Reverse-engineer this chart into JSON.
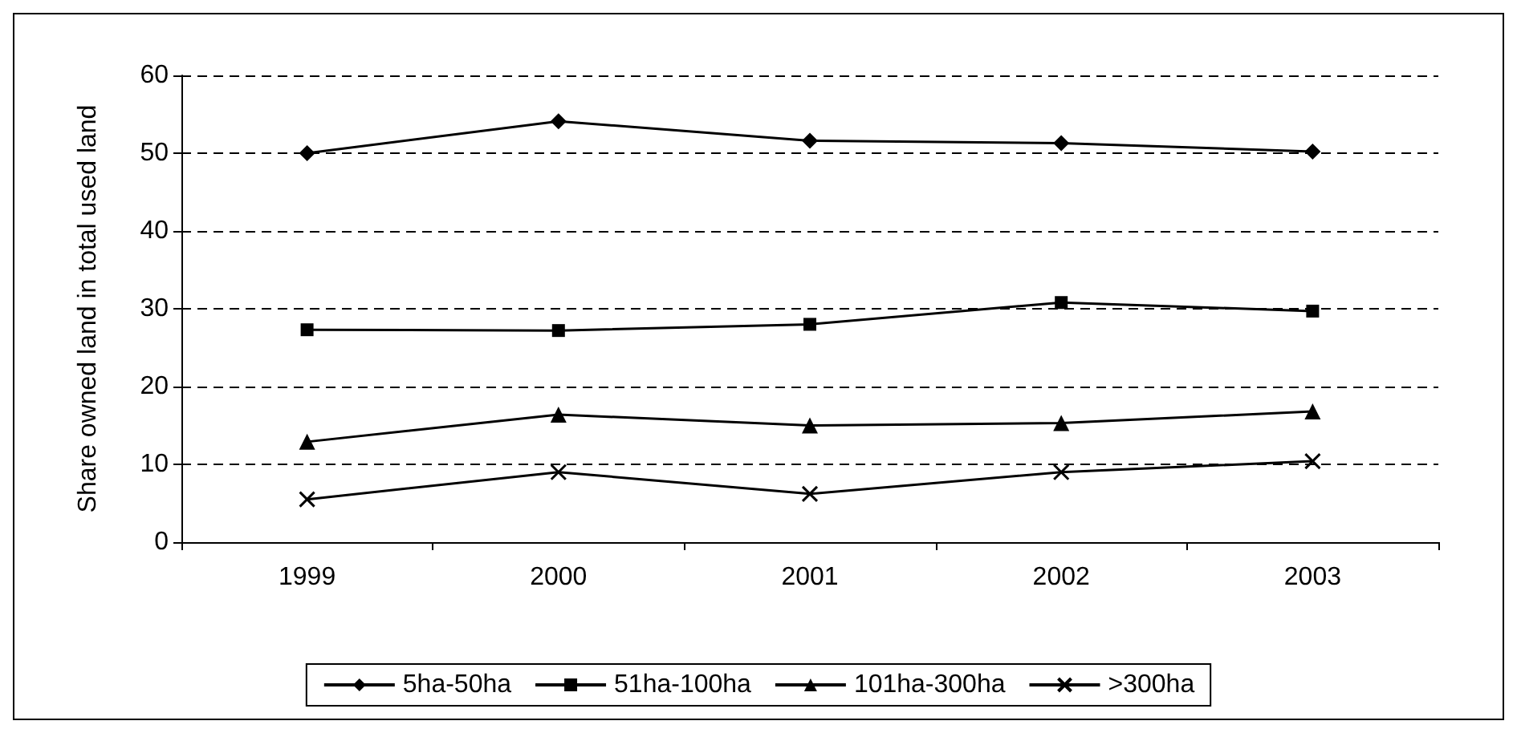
{
  "chart_data": {
    "type": "line",
    "ylabel": "Share owned land in total used land",
    "categories": [
      "1999",
      "2000",
      "2001",
      "2002",
      "2003"
    ],
    "series": [
      {
        "name": "5ha-50ha",
        "color": "#000000",
        "marker": "diamond",
        "values": [
          50,
          54.1,
          51.6,
          51.3,
          50.2
        ]
      },
      {
        "name": "51ha-100ha",
        "color": "#000000",
        "marker": "square",
        "values": [
          27.3,
          27.2,
          28,
          30.8,
          29.7
        ]
      },
      {
        "name": "101ha-300ha",
        "color": "#000000",
        "marker": "triangle",
        "values": [
          12.9,
          16.4,
          15,
          15.3,
          16.8
        ]
      },
      {
        "name": ">300ha",
        "color": "#000000",
        "marker": "cross",
        "values": [
          5.5,
          9,
          6.2,
          9,
          10.4
        ]
      }
    ],
    "ylim": [
      0,
      60
    ],
    "yticks": [
      0,
      10,
      20,
      30,
      40,
      50,
      60
    ],
    "grid": "y",
    "legend": "bottom",
    "line_style": "solid"
  }
}
